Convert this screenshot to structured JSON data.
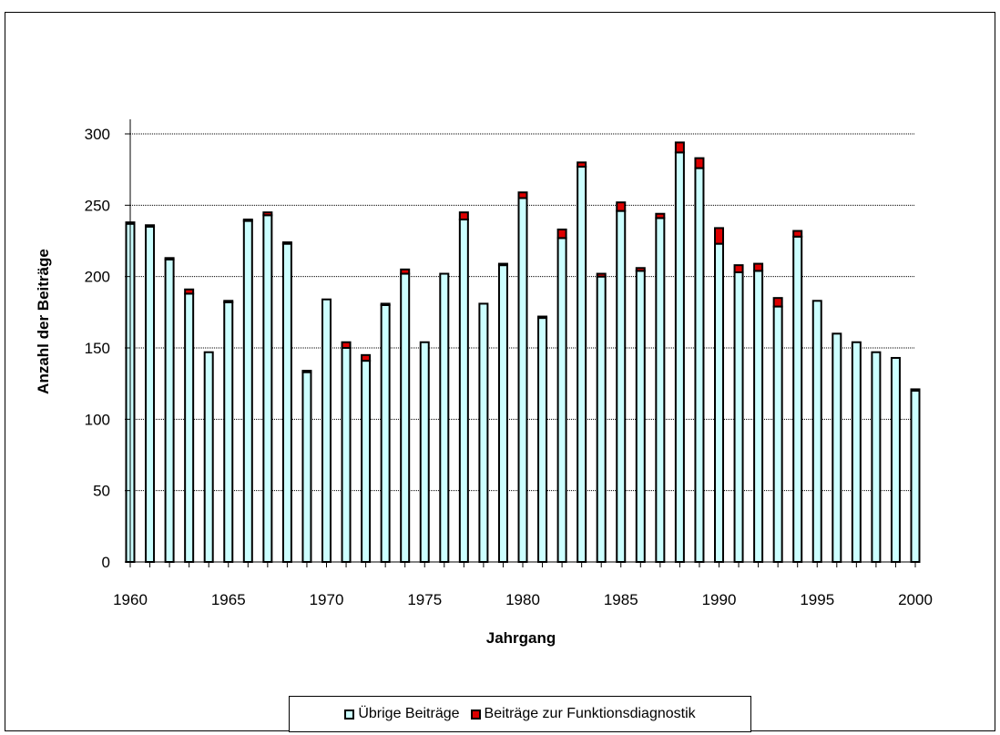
{
  "colors": {
    "uebrige": "#ccffff",
    "funktion": "#dd0000",
    "outline": "#000000"
  },
  "chart_data": {
    "type": "bar",
    "stacked": true,
    "title": "",
    "xlabel": "Jahrgang",
    "ylabel": "Anzahl der Beiträge",
    "ylim": [
      0,
      300
    ],
    "yticks": [
      "0",
      "50",
      "100",
      "150",
      "200",
      "250",
      "300"
    ],
    "xticks": [
      "1960",
      "1965",
      "1970",
      "1975",
      "1980",
      "1985",
      "1990",
      "1995",
      "2000"
    ],
    "grid": "horizontal",
    "legend_position": "bottom",
    "categories": [
      1960,
      1961,
      1962,
      1963,
      1964,
      1965,
      1966,
      1967,
      1968,
      1969,
      1970,
      1971,
      1972,
      1973,
      1974,
      1975,
      1976,
      1977,
      1978,
      1979,
      1980,
      1981,
      1982,
      1983,
      1984,
      1985,
      1986,
      1987,
      1988,
      1989,
      1990,
      1991,
      1992,
      1993,
      1994,
      1995,
      1996,
      1997,
      1998,
      1999,
      2000
    ],
    "series": [
      {
        "name": "Übrige Beiträge",
        "values": [
          237,
          235,
          212,
          188,
          147,
          182,
          239,
          243,
          223,
          133,
          184,
          150,
          141,
          180,
          202,
          154,
          202,
          240,
          181,
          208,
          255,
          171,
          227,
          277,
          200,
          246,
          204,
          241,
          287,
          276,
          223,
          203,
          204,
          179,
          228,
          183,
          160,
          154,
          147,
          143,
          120
        ]
      },
      {
        "name": "Beiträge zur Funktionsdiagnostik",
        "values": [
          1,
          1,
          1,
          3,
          0,
          1,
          1,
          2,
          1,
          1,
          0,
          4,
          4,
          1,
          3,
          0,
          0,
          5,
          0,
          1,
          4,
          1,
          6,
          3,
          2,
          6,
          2,
          3,
          7,
          7,
          11,
          5,
          5,
          6,
          4,
          0,
          0,
          0,
          0,
          0,
          1
        ]
      }
    ]
  },
  "legend": {
    "items": [
      {
        "label": "Übrige Beiträge"
      },
      {
        "label": "Beiträge zur Funktionsdiagnostik"
      }
    ]
  }
}
